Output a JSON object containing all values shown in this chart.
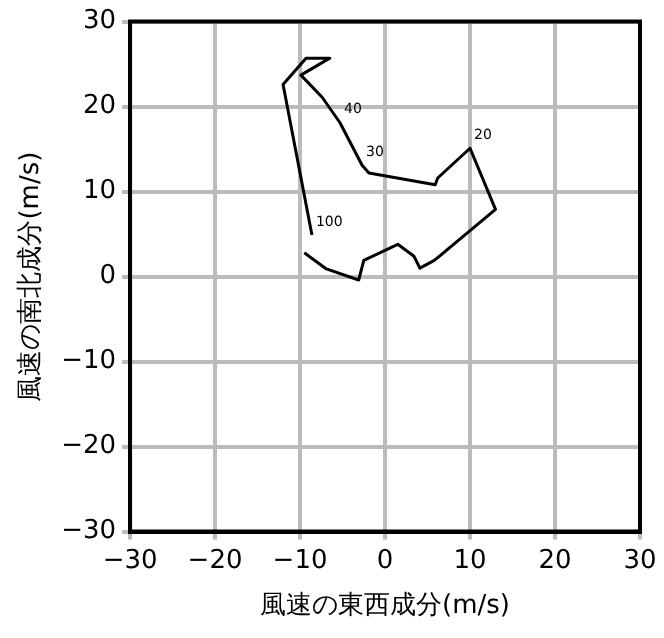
{
  "chart_data": {
    "type": "line",
    "xlabel": "風速の東西成分(m/s)",
    "ylabel": "風速の南北成分(m/s)",
    "x": [
      -9.5,
      -6.9,
      -3.1,
      -2.5,
      1.5,
      3.4,
      4.1,
      5.8,
      13.0,
      10.0,
      6.2,
      5.9,
      -1.9,
      -2.7,
      -5.3,
      -7.4,
      -9.9,
      -6.5,
      -9.3,
      -12.0,
      -8.6
    ],
    "values": [
      2.8,
      0.9,
      -0.4,
      1.9,
      3.8,
      2.4,
      1.0,
      1.9,
      7.9,
      15.1,
      11.6,
      10.8,
      12.2,
      13.1,
      18.1,
      21.1,
      23.7,
      25.7,
      25.7,
      22.6,
      4.9
    ],
    "color": "#000000",
    "xlim": [
      -30,
      30
    ],
    "ylim": [
      -30,
      30
    ],
    "xticks": [
      -30,
      -20,
      -10,
      0,
      10,
      20,
      30
    ],
    "yticks": [
      -30,
      -20,
      -10,
      0,
      10,
      20,
      30
    ],
    "grid": true,
    "legend": false,
    "marker": "none",
    "line_style": "solid",
    "annotations": [
      {
        "text": "20",
        "x": 10.0,
        "y": 15.1
      },
      {
        "text": "30",
        "x": -2.7,
        "y": 13.1
      },
      {
        "text": "40",
        "x": -5.3,
        "y": 18.1
      },
      {
        "text": "100",
        "x": -8.6,
        "y": 4.9
      }
    ]
  }
}
